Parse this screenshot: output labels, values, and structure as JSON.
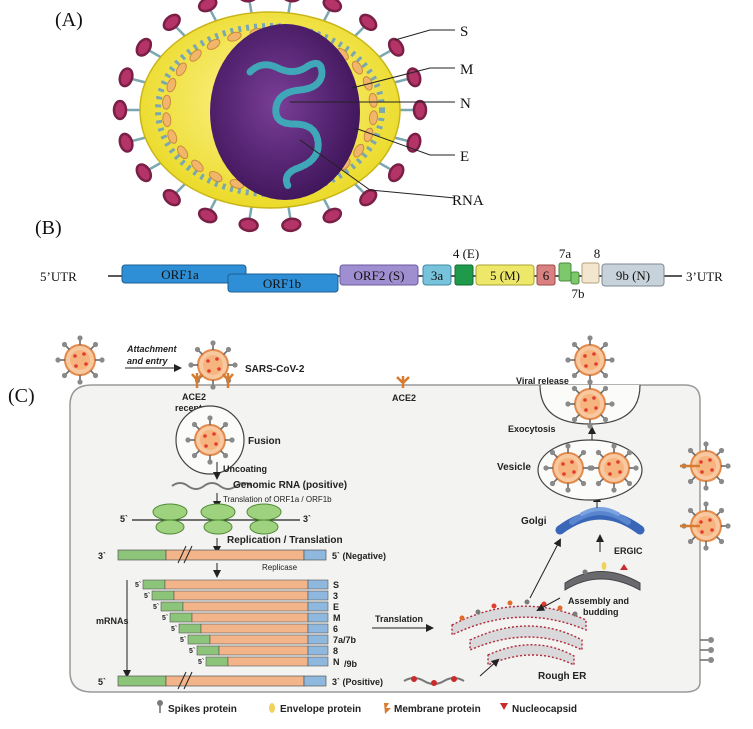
{
  "panel_a": {
    "label": "(A)",
    "callouts": [
      "S",
      "M",
      "N",
      "E",
      "RNA"
    ],
    "colors": {
      "envelope": "#f2e62a",
      "capsid": "#5b2a7a",
      "spike": "#b43468",
      "rna": "#3fa7b8",
      "membrane_protein": "#f2b66b"
    }
  },
  "panel_b": {
    "label": "(B)",
    "utr5": "5’UTR",
    "utr3": "3’UTR",
    "genes": [
      {
        "label": "ORF1a",
        "color": "#2f8fd6"
      },
      {
        "label": "ORF1b",
        "color": "#2f8fd6"
      },
      {
        "label": "ORF2 (S)",
        "color": "#a08fd0"
      },
      {
        "label": "3a",
        "color": "#77c3db"
      },
      {
        "label": "",
        "color": "#1e9a4a"
      },
      {
        "label": "5 (M)",
        "color": "#eee86a"
      },
      {
        "label": "6",
        "color": "#d98080"
      },
      {
        "label": "",
        "color": "#7cc86a"
      },
      {
        "label": "",
        "color": "#7cc86a"
      },
      {
        "label": "",
        "color": "#f3e6cf"
      },
      {
        "label": "9b (N)",
        "color": "#c8d2da"
      }
    ],
    "above_labels": [
      "4 (E)",
      "7a",
      "8"
    ],
    "below_labels": [
      "7b"
    ]
  },
  "panel_c": {
    "label": "(C)",
    "attachment_line1": "Attachment",
    "attachment_line2": "and entry",
    "virus_name": "SARS-CoV-2",
    "ace2_receptor_line1": "ACE2",
    "ace2_receptor_line2": "receptor",
    "ace2": "ACE2",
    "fusion": "Fusion",
    "uncoating": "Uncoating",
    "genomic_rna": "Genomic RNA (positive)",
    "translation_orf": "Translation of ORF1a / ORF1b",
    "five_prime": "5`",
    "three_prime": "3`",
    "replication": "Replication / Translation",
    "negative": "5` (Negative)",
    "replicase": "Replicase",
    "mrnas": "mRNAs",
    "mrna_labels": [
      "S",
      "3",
      "E",
      "M",
      "6",
      "7a/7b",
      "8",
      "N"
    ],
    "n9b_suffix": "/9b",
    "positive": "3` (Positive)",
    "translation": "Translation",
    "rough_er": "Rough ER",
    "golgi": "Golgi",
    "ergic": "ERGIC",
    "assembly_line1": "Assembly and",
    "assembly_line2": "budding",
    "vesicle": "Vesicle",
    "exocytosis": "Exocytosis",
    "viral_release": "Viral release",
    "legend": [
      "Spikes protein",
      "Envelope protein",
      "Membrane protein",
      "Nucleocapsid"
    ],
    "colors": {
      "cell": "#f3f3f1",
      "green_segment": "#8cc47a",
      "orange_segment": "#f3b48a",
      "blue_segment": "#8fb8de",
      "golgi": "#3a66b8",
      "ribosome": "#9fd27e"
    }
  }
}
